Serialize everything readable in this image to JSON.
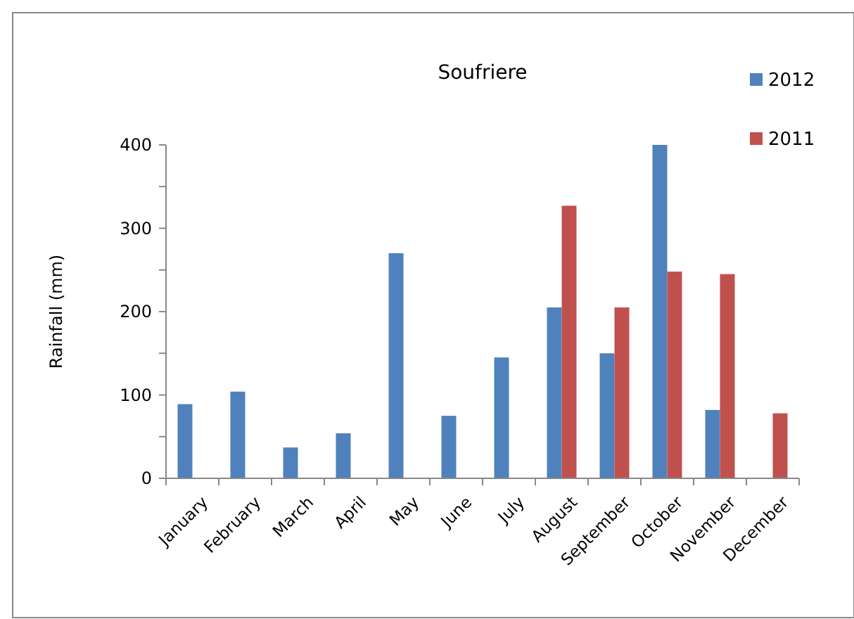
{
  "chart_data": {
    "type": "bar",
    "title": "Soufriere",
    "ylabel": "Rainfall (mm)",
    "categories": [
      "January",
      "February",
      "March",
      "April",
      "May",
      "June",
      "July",
      "August",
      "September",
      "October",
      "November",
      "December"
    ],
    "series": [
      {
        "name": "2012",
        "color": "#4f81bd",
        "values": [
          89,
          104,
          37,
          54,
          270,
          75,
          145,
          205,
          150,
          400,
          82,
          null
        ]
      },
      {
        "name": "2011",
        "color": "#c0504d",
        "values": [
          null,
          null,
          null,
          null,
          null,
          null,
          null,
          327,
          205,
          248,
          245,
          78
        ]
      }
    ],
    "ylim": [
      0,
      400
    ],
    "yticks": [
      0,
      {
        "value": 50,
        "label": null
      },
      100,
      {
        "value": 150,
        "label": null
      },
      200,
      {
        "value": 250,
        "label": null
      },
      300,
      {
        "value": 350,
        "label": null
      },
      400
    ],
    "grid": false,
    "legend": "top right"
  }
}
